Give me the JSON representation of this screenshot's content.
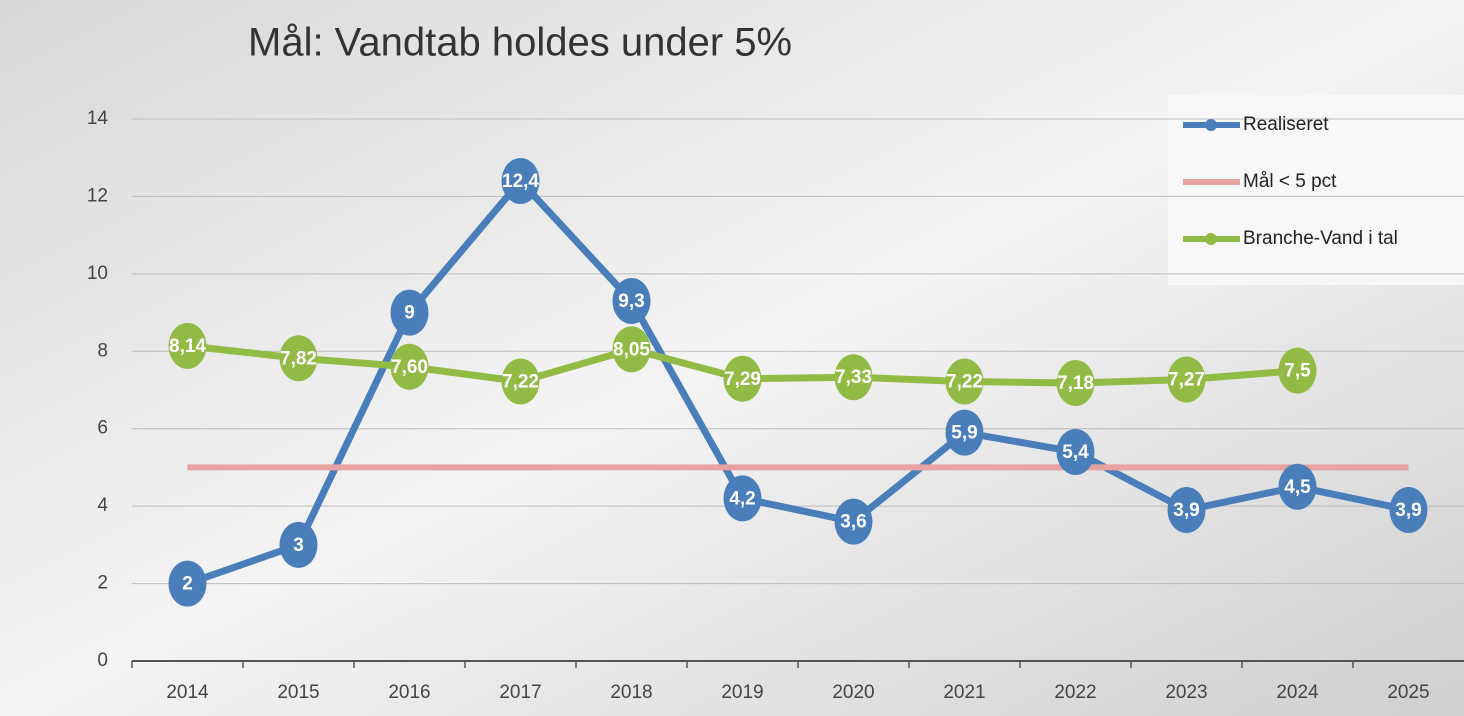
{
  "chart_data": {
    "type": "line",
    "title": "Mål: Vandtab holdes under 5%",
    "categories": [
      "2014",
      "2015",
      "2016",
      "2017",
      "2018",
      "2019",
      "2020",
      "2021",
      "2022",
      "2023",
      "2024",
      "2025"
    ],
    "series": [
      {
        "name": "Realiseret",
        "color": "#4a7ebb",
        "markers": true,
        "values": [
          2,
          3,
          9,
          12.4,
          9.3,
          4.2,
          3.6,
          5.9,
          5.4,
          3.9,
          4.5,
          3.9
        ],
        "value_labels": [
          "2",
          "3",
          "9",
          "12,4",
          "9,3",
          "4,2",
          "3,6",
          "5,9",
          "5,4",
          "3,9",
          "4,5",
          "3,9"
        ]
      },
      {
        "name": "Mål < 5 pct",
        "color": "#e8a2a2",
        "markers": false,
        "values": [
          5,
          5,
          5,
          5,
          5,
          5,
          5,
          5,
          5,
          5,
          5,
          5
        ]
      },
      {
        "name": "Branche-Vand i tal",
        "color": "#92bb45",
        "markers": true,
        "values": [
          8.14,
          7.82,
          7.6,
          7.22,
          8.05,
          7.29,
          7.33,
          7.22,
          7.18,
          7.27,
          7.5,
          null
        ],
        "value_labels": [
          "8,14",
          "7,82",
          "7,60",
          "7,22",
          "8,05",
          "7,29",
          "7,33",
          "7,22",
          "7,18",
          "7,27",
          "7,5",
          null
        ]
      }
    ],
    "ylim": [
      0,
      14
    ],
    "yticks": [
      0,
      2,
      4,
      6,
      8,
      10,
      12,
      14
    ],
    "grid": true,
    "legend": "top-right"
  }
}
